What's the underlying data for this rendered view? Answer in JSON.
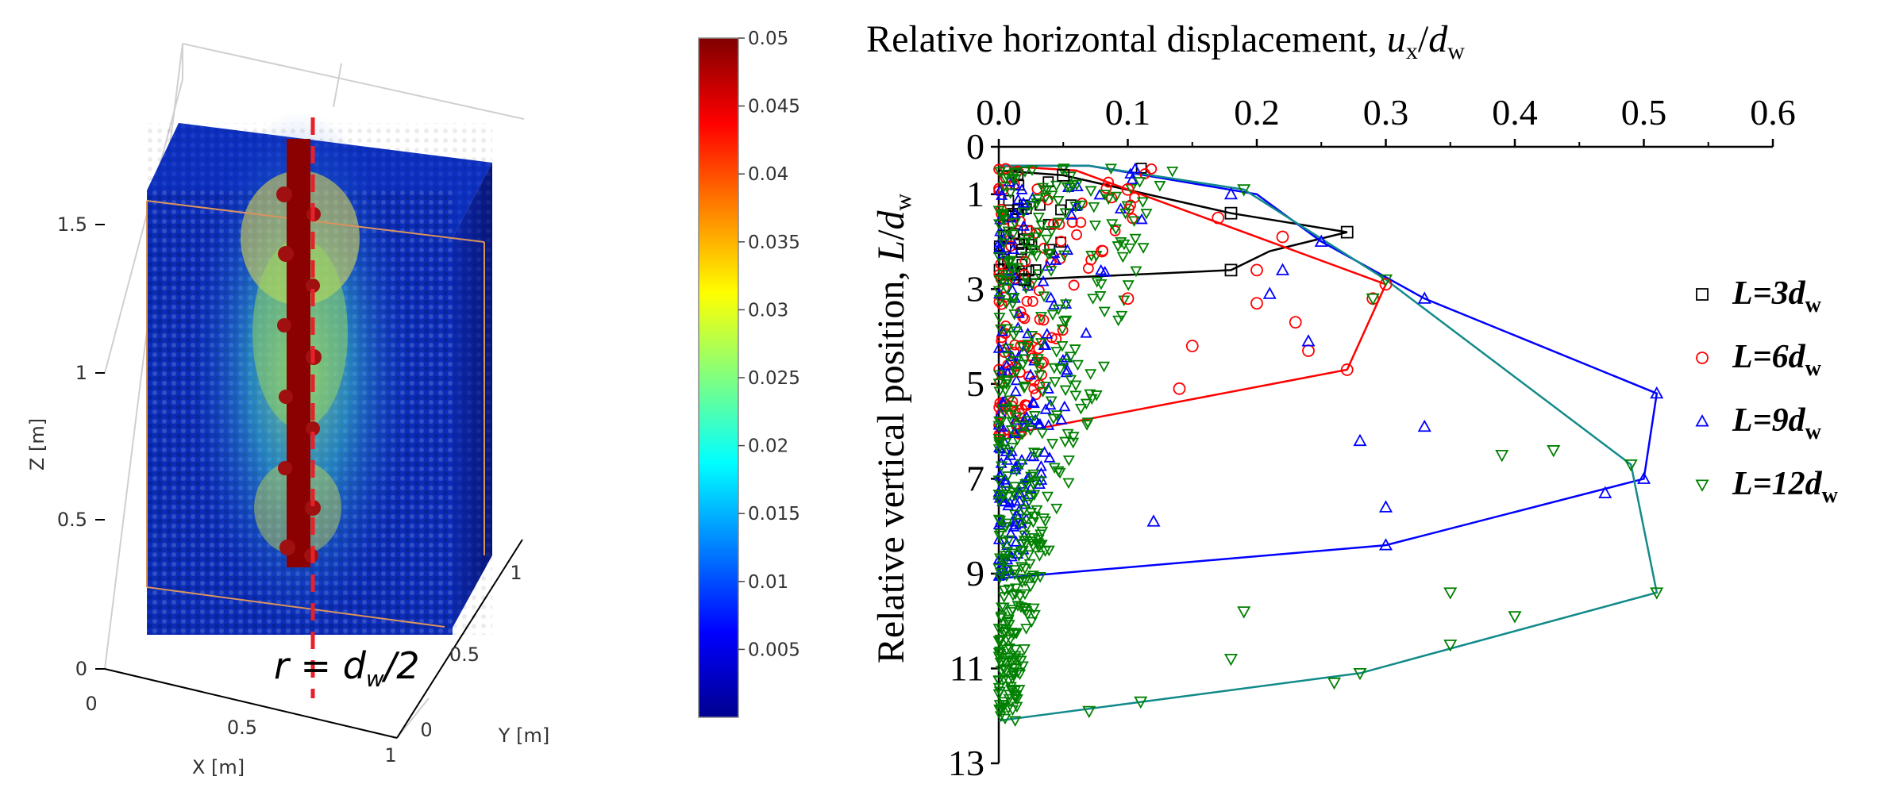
{
  "chart_data": [
    {
      "type": "scatter",
      "panel": "3d-particle-view",
      "xlabel": "X [m]",
      "ylabel": "Y [m]",
      "zlabel": "Z [m]",
      "x_ticks": [
        "0",
        "0.5",
        "1"
      ],
      "y_ticks": [
        "0",
        "0.5",
        "1"
      ],
      "z_ticks": [
        "0",
        "0.5",
        "1",
        "1.5"
      ],
      "annotation": {
        "base": "r = d",
        "sub": "w",
        "tail": "/2"
      },
      "colorbar": {
        "min": 0,
        "max": 0.05,
        "ticks": [
          "0.005",
          "0.01",
          "0.015",
          "0.02",
          "0.025",
          "0.03",
          "0.035",
          "0.04",
          "0.045",
          "0.05"
        ],
        "colormap": [
          "#00008f",
          "#0000ff",
          "#0080ff",
          "#00ffff",
          "#80ff80",
          "#ffff00",
          "#ff8000",
          "#ff0000",
          "#800000"
        ]
      },
      "colors": {
        "column": "#8b0000",
        "dashed_line": "#e8202a",
        "frame": "#d9935f"
      }
    },
    {
      "type": "scatter",
      "panel": "displacement-profile",
      "title": {
        "main": "Relative horizontal displacement, ",
        "var": "u",
        "var_sub": "x",
        "slash": "/",
        "var2": "d",
        "var2_sub": "w"
      },
      "ylabel": {
        "main": "Relative vertical position, ",
        "var": "L",
        "slash": "/",
        "var2": "d",
        "var2_sub": "w"
      },
      "xlim": [
        0,
        0.6
      ],
      "ylim": [
        0,
        13
      ],
      "x_ticks": [
        "0.0",
        "0.1",
        "0.2",
        "0.3",
        "0.4",
        "0.5",
        "0.6"
      ],
      "y_ticks": [
        "0",
        "1",
        "3",
        "5",
        "7",
        "9",
        "11",
        "13"
      ],
      "series": [
        {
          "name": "L=3d_w",
          "label_main": "L=3d",
          "label_sub": "w",
          "marker": "square",
          "color": "#000000",
          "envelope": [
            [
              0,
              0.5
            ],
            [
              0.05,
              0.6
            ],
            [
              0.18,
              1.4
            ],
            [
              0.27,
              1.8
            ],
            [
              0.21,
              2.2
            ],
            [
              0.18,
              2.6
            ],
            [
              0.02,
              2.8
            ],
            [
              0,
              2.8
            ]
          ],
          "points": [
            [
              0.05,
              0.6
            ],
            [
              0.18,
              1.4
            ],
            [
              0.27,
              1.8
            ],
            [
              0.18,
              2.6
            ],
            [
              0.02,
              2.8
            ]
          ]
        },
        {
          "name": "L=6d_w",
          "label_main": "L=6d",
          "label_sub": "w",
          "marker": "circle",
          "color": "#ff0000",
          "envelope": [
            [
              0,
              0.4
            ],
            [
              0.06,
              0.5
            ],
            [
              0.3,
              2.9
            ],
            [
              0.27,
              4.7
            ],
            [
              0,
              6.1
            ]
          ],
          "points": [
            [
              0.1,
              0.9
            ],
            [
              0.17,
              1.5
            ],
            [
              0.22,
              1.9
            ],
            [
              0.08,
              2.2
            ],
            [
              0.2,
              2.6
            ],
            [
              0.1,
              3.2
            ],
            [
              0.2,
              3.3
            ],
            [
              0.29,
              3.2
            ],
            [
              0.3,
              2.9
            ],
            [
              0.23,
              3.7
            ],
            [
              0.15,
              4.2
            ],
            [
              0.24,
              4.3
            ],
            [
              0.14,
              5.1
            ],
            [
              0.27,
              4.7
            ]
          ]
        },
        {
          "name": "L=9d_w",
          "label_main": "L=9d",
          "label_sub": "w",
          "marker": "triangle-up",
          "color": "#0000ff",
          "envelope": [
            [
              0,
              0.4
            ],
            [
              0.07,
              0.4
            ],
            [
              0.2,
              1.0
            ],
            [
              0.25,
              2.0
            ],
            [
              0.33,
              3.2
            ],
            [
              0.51,
              5.2
            ],
            [
              0.5,
              7.0
            ],
            [
              0.3,
              8.4
            ],
            [
              0,
              9.1
            ]
          ],
          "points": [
            [
              0.18,
              1.0
            ],
            [
              0.25,
              2.0
            ],
            [
              0.33,
              3.2
            ],
            [
              0.51,
              5.2
            ],
            [
              0.33,
              5.9
            ],
            [
              0.28,
              6.2
            ],
            [
              0.3,
              7.6
            ],
            [
              0.12,
              7.9
            ],
            [
              0.3,
              8.4
            ],
            [
              0.47,
              7.3
            ],
            [
              0.5,
              7.0
            ],
            [
              0.21,
              3.1
            ],
            [
              0.24,
              4.1
            ],
            [
              0.22,
              2.6
            ]
          ]
        },
        {
          "name": "L=12d_w",
          "label_main": "L=12d",
          "label_sub": "w",
          "marker": "triangle-down",
          "color": "#008000",
          "envelope": [
            [
              0,
              0.4
            ],
            [
              0.07,
              0.4
            ],
            [
              0.19,
              0.9
            ],
            [
              0.3,
              2.8
            ],
            [
              0.49,
              6.7
            ],
            [
              0.51,
              9.4
            ],
            [
              0.28,
              11.1
            ],
            [
              0,
              12.1
            ]
          ],
          "points": [
            [
              0.19,
              0.9
            ],
            [
              0.3,
              2.8
            ],
            [
              0.29,
              3.2
            ],
            [
              0.49,
              6.7
            ],
            [
              0.43,
              6.4
            ],
            [
              0.39,
              6.5
            ],
            [
              0.51,
              9.4
            ],
            [
              0.4,
              9.9
            ],
            [
              0.35,
              9.4
            ],
            [
              0.35,
              10.5
            ],
            [
              0.28,
              11.1
            ],
            [
              0.26,
              11.3
            ],
            [
              0.19,
              9.8
            ],
            [
              0.18,
              10.8
            ],
            [
              0.11,
              11.7
            ],
            [
              0.07,
              11.9
            ]
          ]
        }
      ],
      "envelope_colors": {
        "L=3d_w": "#000000",
        "L=6d_w": "#ff0000",
        "L=9d_w": "#0000ff",
        "L=12d_w": "#128a8a"
      }
    }
  ]
}
